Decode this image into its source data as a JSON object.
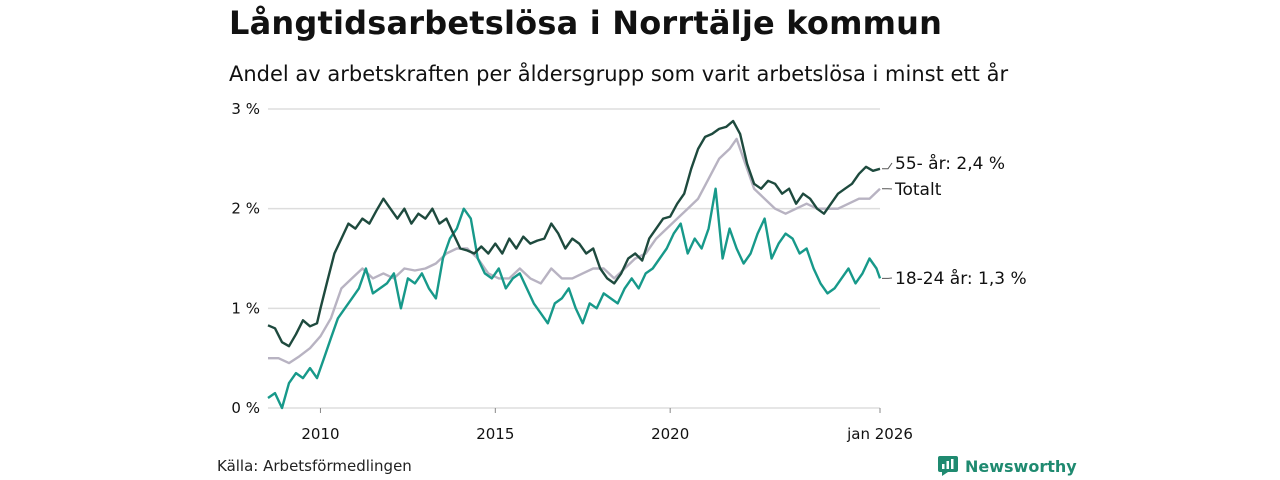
{
  "header": {
    "title": "Långtidsarbetslösa i Norrtälje kommun",
    "subtitle": "Andel av arbetskraften per åldersgrupp som varit arbetslösa i minst ett år"
  },
  "footer": {
    "source": "Källa: Arbetsförmedlingen",
    "brand": "Newsworthy"
  },
  "colors": {
    "s55": "#1e4a3e",
    "total": "#b8b3c2",
    "youth": "#17998a",
    "grid": "#dddddd",
    "brand": "#1f8a70"
  },
  "chart_data": {
    "type": "line",
    "title": "Långtidsarbetslösa i Norrtälje kommun",
    "subtitle": "Andel av arbetskraften per åldersgrupp som varit arbetslösa i minst ett år",
    "xlabel": "",
    "ylabel": "",
    "x_range": [
      2008.5,
      2026.0
    ],
    "ylim": [
      0,
      3
    ],
    "y_ticks": [
      {
        "value": 0,
        "label": "0 %"
      },
      {
        "value": 1,
        "label": "1 %"
      },
      {
        "value": 2,
        "label": "2 %"
      },
      {
        "value": 3,
        "label": "3 %"
      }
    ],
    "x_ticks": [
      {
        "value": 2010,
        "label": "2010"
      },
      {
        "value": 2015,
        "label": "2015"
      },
      {
        "value": 2020,
        "label": "2020"
      },
      {
        "value": 2026,
        "label": "jan 2026"
      }
    ],
    "grid": true,
    "series": [
      {
        "name": "55- år",
        "end_label": "55- år: 2,4 %",
        "x": [
          2008.5,
          2008.7,
          2008.9,
          2009.1,
          2009.3,
          2009.5,
          2009.7,
          2009.9,
          2010.0,
          2010.2,
          2010.4,
          2010.6,
          2010.8,
          2011.0,
          2011.2,
          2011.4,
          2011.6,
          2011.8,
          2012.0,
          2012.2,
          2012.4,
          2012.6,
          2012.8,
          2013.0,
          2013.2,
          2013.4,
          2013.6,
          2013.8,
          2014.0,
          2014.2,
          2014.4,
          2014.6,
          2014.8,
          2015.0,
          2015.2,
          2015.4,
          2015.6,
          2015.8,
          2016.0,
          2016.2,
          2016.4,
          2016.6,
          2016.8,
          2017.0,
          2017.2,
          2017.4,
          2017.6,
          2017.8,
          2018.0,
          2018.2,
          2018.4,
          2018.6,
          2018.8,
          2019.0,
          2019.2,
          2019.4,
          2019.6,
          2019.8,
          2020.0,
          2020.2,
          2020.4,
          2020.6,
          2020.8,
          2021.0,
          2021.2,
          2021.4,
          2021.6,
          2021.8,
          2022.0,
          2022.2,
          2022.4,
          2022.6,
          2022.8,
          2023.0,
          2023.2,
          2023.4,
          2023.6,
          2023.8,
          2024.0,
          2024.2,
          2024.4,
          2024.6,
          2024.8,
          2025.0,
          2025.2,
          2025.4,
          2025.6,
          2025.8,
          2026.0
        ],
        "values": [
          0.83,
          0.8,
          0.66,
          0.62,
          0.74,
          0.88,
          0.82,
          0.85,
          1.0,
          1.28,
          1.55,
          1.7,
          1.85,
          1.8,
          1.9,
          1.85,
          1.98,
          2.1,
          2.0,
          1.9,
          2.0,
          1.85,
          1.95,
          1.9,
          2.0,
          1.85,
          1.9,
          1.75,
          1.6,
          1.58,
          1.55,
          1.62,
          1.55,
          1.65,
          1.55,
          1.7,
          1.6,
          1.72,
          1.65,
          1.68,
          1.7,
          1.85,
          1.75,
          1.6,
          1.7,
          1.65,
          1.55,
          1.6,
          1.4,
          1.3,
          1.25,
          1.35,
          1.5,
          1.55,
          1.48,
          1.7,
          1.8,
          1.9,
          1.92,
          2.05,
          2.15,
          2.4,
          2.6,
          2.72,
          2.75,
          2.8,
          2.82,
          2.88,
          2.75,
          2.45,
          2.25,
          2.2,
          2.28,
          2.25,
          2.15,
          2.2,
          2.05,
          2.15,
          2.1,
          2.0,
          1.95,
          2.05,
          2.15,
          2.2,
          2.25,
          2.35,
          2.42,
          2.38,
          2.4
        ]
      },
      {
        "name": "Totalt",
        "end_label": "Totalt",
        "x": [
          2008.5,
          2008.8,
          2009.1,
          2009.4,
          2009.7,
          2010.0,
          2010.3,
          2010.6,
          2010.9,
          2011.2,
          2011.5,
          2011.8,
          2012.1,
          2012.4,
          2012.7,
          2013.0,
          2013.3,
          2013.6,
          2013.9,
          2014.2,
          2014.5,
          2014.8,
          2015.1,
          2015.4,
          2015.7,
          2016.0,
          2016.3,
          2016.6,
          2016.9,
          2017.2,
          2017.5,
          2017.8,
          2018.1,
          2018.4,
          2018.7,
          2019.0,
          2019.3,
          2019.6,
          2019.9,
          2020.2,
          2020.5,
          2020.8,
          2021.1,
          2021.4,
          2021.7,
          2021.9,
          2022.1,
          2022.4,
          2022.7,
          2023.0,
          2023.3,
          2023.6,
          2023.9,
          2024.2,
          2024.5,
          2024.8,
          2025.1,
          2025.4,
          2025.7,
          2026.0
        ],
        "values": [
          0.5,
          0.5,
          0.45,
          0.52,
          0.6,
          0.72,
          0.9,
          1.2,
          1.3,
          1.4,
          1.3,
          1.35,
          1.3,
          1.4,
          1.38,
          1.4,
          1.45,
          1.55,
          1.6,
          1.6,
          1.5,
          1.35,
          1.3,
          1.3,
          1.4,
          1.3,
          1.25,
          1.4,
          1.3,
          1.3,
          1.35,
          1.4,
          1.4,
          1.3,
          1.4,
          1.5,
          1.55,
          1.7,
          1.8,
          1.9,
          2.0,
          2.1,
          2.3,
          2.5,
          2.6,
          2.7,
          2.5,
          2.2,
          2.1,
          2.0,
          1.95,
          2.0,
          2.05,
          2.0,
          2.0,
          2.0,
          2.05,
          2.1,
          2.1,
          2.2
        ]
      },
      {
        "name": "18-24 år",
        "end_label": "18-24 år: 1,3 %",
        "x": [
          2008.5,
          2008.7,
          2008.9,
          2009.1,
          2009.3,
          2009.5,
          2009.7,
          2009.9,
          2010.1,
          2010.3,
          2010.5,
          2010.7,
          2010.9,
          2011.1,
          2011.3,
          2011.5,
          2011.7,
          2011.9,
          2012.1,
          2012.3,
          2012.5,
          2012.7,
          2012.9,
          2013.1,
          2013.3,
          2013.5,
          2013.7,
          2013.9,
          2014.1,
          2014.3,
          2014.5,
          2014.7,
          2014.9,
          2015.1,
          2015.3,
          2015.5,
          2015.7,
          2015.9,
          2016.1,
          2016.3,
          2016.5,
          2016.7,
          2016.9,
          2017.1,
          2017.3,
          2017.5,
          2017.7,
          2017.9,
          2018.1,
          2018.3,
          2018.5,
          2018.7,
          2018.9,
          2019.1,
          2019.3,
          2019.5,
          2019.7,
          2019.9,
          2020.1,
          2020.3,
          2020.5,
          2020.7,
          2020.9,
          2021.1,
          2021.3,
          2021.5,
          2021.7,
          2021.9,
          2022.1,
          2022.3,
          2022.5,
          2022.7,
          2022.9,
          2023.1,
          2023.3,
          2023.5,
          2023.7,
          2023.9,
          2024.1,
          2024.3,
          2024.5,
          2024.7,
          2024.9,
          2025.1,
          2025.3,
          2025.5,
          2025.7,
          2025.9,
          2026.0
        ],
        "values": [
          0.1,
          0.15,
          0.0,
          0.25,
          0.35,
          0.3,
          0.4,
          0.3,
          0.5,
          0.7,
          0.9,
          1.0,
          1.1,
          1.2,
          1.4,
          1.15,
          1.2,
          1.25,
          1.35,
          1.0,
          1.3,
          1.25,
          1.35,
          1.2,
          1.1,
          1.5,
          1.7,
          1.8,
          2.0,
          1.9,
          1.5,
          1.35,
          1.3,
          1.4,
          1.2,
          1.3,
          1.35,
          1.2,
          1.05,
          0.95,
          0.85,
          1.05,
          1.1,
          1.2,
          1.0,
          0.85,
          1.05,
          1.0,
          1.15,
          1.1,
          1.05,
          1.2,
          1.3,
          1.2,
          1.35,
          1.4,
          1.5,
          1.6,
          1.75,
          1.85,
          1.55,
          1.7,
          1.6,
          1.8,
          2.2,
          1.5,
          1.8,
          1.6,
          1.45,
          1.55,
          1.75,
          1.9,
          1.5,
          1.65,
          1.75,
          1.7,
          1.55,
          1.6,
          1.4,
          1.25,
          1.15,
          1.2,
          1.3,
          1.4,
          1.25,
          1.35,
          1.5,
          1.4,
          1.3
        ]
      }
    ]
  }
}
